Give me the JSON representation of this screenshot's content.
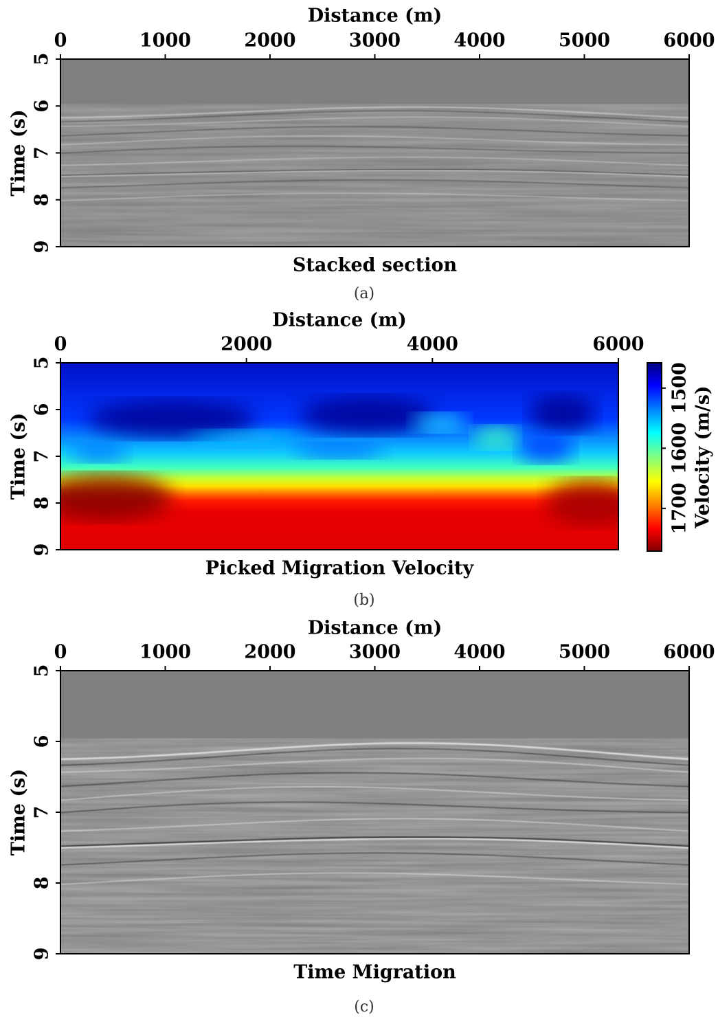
{
  "chart_data": [
    {
      "type": "heatmap",
      "title": "Stacked section",
      "caption": "(a)",
      "xlabel": "Distance (m)",
      "ylabel": "Time (s)",
      "xlim": [
        0,
        6000
      ],
      "xticks": [
        0,
        1000,
        2000,
        3000,
        4000,
        5000,
        6000
      ],
      "ylim": [
        5,
        9
      ],
      "yticks": [
        5,
        6,
        7,
        8,
        9
      ],
      "y_inverted": true,
      "colormap": "gray"
    },
    {
      "type": "heatmap",
      "title": "Picked Migration Velocity",
      "caption": "(b)",
      "xlabel": "Distance (m)",
      "ylabel": "Time (s)",
      "xlim": [
        0,
        6000
      ],
      "xticks": [
        0,
        2000,
        4000,
        6000
      ],
      "ylim": [
        5,
        9
      ],
      "yticks": [
        5,
        6,
        7,
        8,
        9
      ],
      "y_inverted": true,
      "colormap": "jet",
      "colorbar": {
        "label": "Velocity (m/s)",
        "lim": [
          1458,
          1771
        ],
        "ticks": [
          1500,
          1600,
          1700
        ]
      }
    },
    {
      "type": "heatmap",
      "title": "Time Migration",
      "caption": "(c)",
      "xlabel": "Distance (m)",
      "ylabel": "Time (s)",
      "xlim": [
        0,
        6000
      ],
      "xticks": [
        0,
        1000,
        2000,
        3000,
        4000,
        5000,
        6000
      ],
      "ylim": [
        5,
        9
      ],
      "yticks": [
        5,
        6,
        7,
        8,
        9
      ],
      "y_inverted": true,
      "colormap": "gray"
    }
  ]
}
